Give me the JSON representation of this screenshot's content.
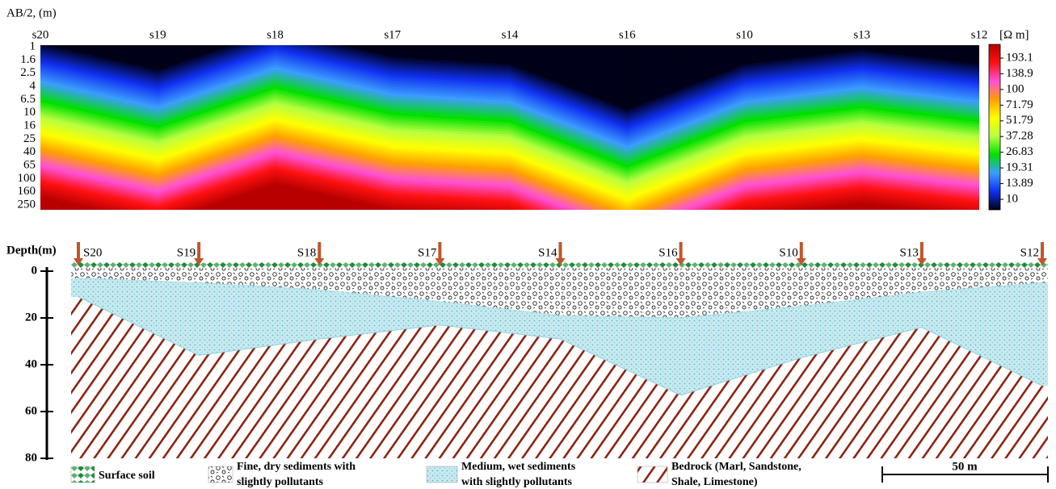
{
  "resistivity_section": {
    "axis_label": "AB/2, (m)",
    "stations": [
      "s20",
      "s19",
      "s18",
      "s17",
      "s14",
      "s16",
      "s10",
      "s13",
      "s12"
    ],
    "ab2_levels": [
      1,
      1.6,
      2.5,
      4,
      6.5,
      10,
      16,
      25,
      40,
      65,
      100,
      160,
      250
    ],
    "contour_26_83_ab2": [
      6.5,
      16,
      4,
      10,
      13,
      65,
      13,
      8,
      13
    ],
    "colorbar": {
      "unit": "[Ω m]",
      "ticks": [
        193.1,
        138.9,
        100,
        71.79,
        51.79,
        37.28,
        26.83,
        19.31,
        13.89,
        10
      ],
      "colors": [
        "#b80000",
        "#ff1010",
        "#ff50d8",
        "#ffa000",
        "#ffff00",
        "#b8ff40",
        "#00e000",
        "#3c9cff",
        "#1030f0",
        "#000018"
      ]
    }
  },
  "geologic_section": {
    "depth_label": "Depth(m)",
    "depth_ticks": [
      0,
      20,
      40,
      60,
      80
    ],
    "ylim": [
      0,
      80
    ],
    "stations": [
      "S20",
      "S19",
      "S18",
      "S17",
      "S14",
      "S16",
      "S10",
      "S13",
      "S12"
    ],
    "fine_sediment_base": [
      3,
      5,
      8,
      13,
      19,
      20,
      15,
      9,
      5
    ],
    "bedrock_top": [
      11,
      36,
      29,
      23,
      29,
      53,
      37,
      24,
      49
    ],
    "legend": [
      {
        "label": [
          "Surface soil"
        ]
      },
      {
        "label": [
          "Fine, dry sediments with",
          "slightly pollutants"
        ]
      },
      {
        "label": [
          "Medium, wet sediments",
          "with slightly pollutants"
        ]
      },
      {
        "label": [
          "Bedrock (Marl, Sandstone,",
          "Shale, Limestone)"
        ]
      }
    ],
    "scale_bar": "50 m"
  }
}
